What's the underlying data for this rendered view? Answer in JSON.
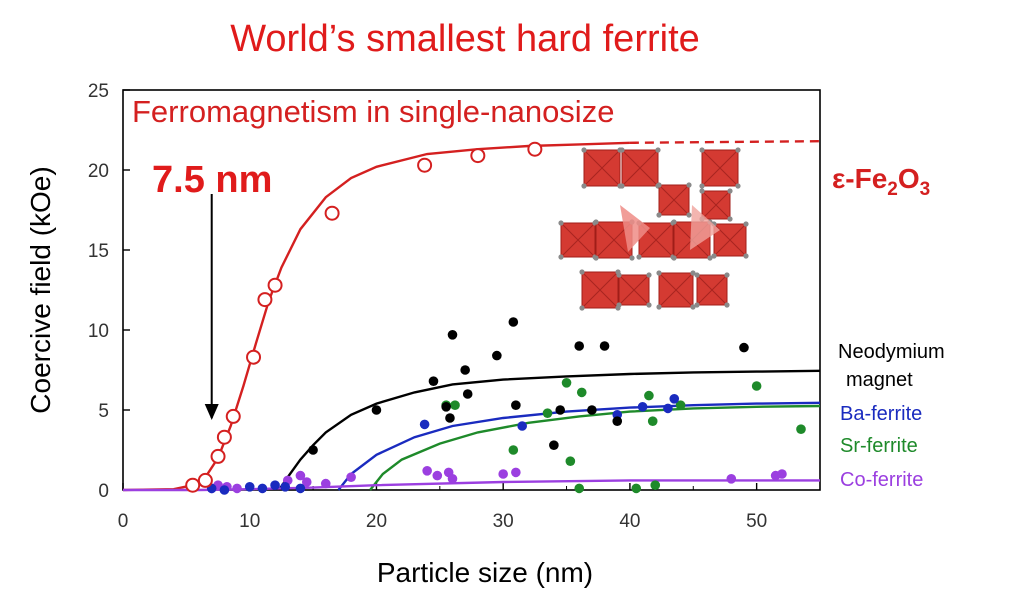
{
  "title": "World’s smallest hard ferrite",
  "chart_data": {
    "type": "scatter",
    "title": "World’s smallest hard ferrite",
    "subtitle": "Ferromagnetism in single-nanosize",
    "xlabel": "Particle size (nm)",
    "ylabel": "Coercive field (kOe)",
    "xlim": [
      0,
      55
    ],
    "ylim": [
      0,
      25
    ],
    "x_ticks": [
      0,
      10,
      20,
      30,
      40,
      50
    ],
    "y_ticks": [
      0,
      5,
      10,
      15,
      20,
      25
    ],
    "grid": false,
    "annotations": {
      "arrow_label": "7.5 nm",
      "arrow_x": 7,
      "arrow_from_y": 18.5,
      "arrow_to_y": 4.5
    },
    "legend_placement": "right, outside plot, next to curve ends",
    "series": [
      {
        "name": "ε-Fe2O3",
        "label_main": "ε-Fe",
        "label_sub1": "2",
        "label_mid": "O",
        "label_sub2": "3",
        "color": "#d42020",
        "marker": "open-circle",
        "points": [
          [
            5.5,
            0.3
          ],
          [
            6.5,
            0.6
          ],
          [
            7.5,
            2.1
          ],
          [
            8,
            3.3
          ],
          [
            8.7,
            4.6
          ],
          [
            10.3,
            8.3
          ],
          [
            11.2,
            11.9
          ],
          [
            12,
            12.8
          ],
          [
            16.5,
            17.3
          ],
          [
            23.8,
            20.3
          ],
          [
            28,
            20.9
          ],
          [
            32.5,
            21.3
          ]
        ],
        "curve": [
          [
            0,
            0
          ],
          [
            4,
            0.05
          ],
          [
            5.5,
            0.3
          ],
          [
            6.5,
            0.8
          ],
          [
            7.5,
            2
          ],
          [
            8.5,
            4
          ],
          [
            9.5,
            6.5
          ],
          [
            10.5,
            9.2
          ],
          [
            11.5,
            11.8
          ],
          [
            12.5,
            13.9
          ],
          [
            14,
            16.3
          ],
          [
            16,
            18.3
          ],
          [
            18,
            19.5
          ],
          [
            20,
            20.2
          ],
          [
            24,
            21
          ],
          [
            28,
            21.3
          ],
          [
            32,
            21.5
          ],
          [
            36,
            21.6
          ],
          [
            40,
            21.7
          ]
        ],
        "curve_dashed": [
          [
            40,
            21.7
          ],
          [
            55,
            21.8
          ]
        ]
      },
      {
        "name": "Neodymium magnet",
        "label_line1": "Neodymium",
        "label_line2": "magnet",
        "color": "#000000",
        "marker": "filled-circle",
        "points": [
          [
            15,
            2.5
          ],
          [
            20,
            5
          ],
          [
            24.5,
            6.8
          ],
          [
            25.5,
            5.2
          ],
          [
            25.8,
            4.5
          ],
          [
            26,
            9.7
          ],
          [
            27,
            7.5
          ],
          [
            27.2,
            6
          ],
          [
            29.5,
            8.4
          ],
          [
            30.8,
            10.5
          ],
          [
            31,
            5.3
          ],
          [
            34,
            2.8
          ],
          [
            34.5,
            5
          ],
          [
            36,
            9
          ],
          [
            37,
            5
          ],
          [
            38,
            9
          ],
          [
            39,
            4.3
          ],
          [
            49,
            8.9
          ]
        ],
        "curve": [
          [
            12.3,
            0
          ],
          [
            13,
            0.8
          ],
          [
            14,
            1.9
          ],
          [
            15,
            2.8
          ],
          [
            16,
            3.6
          ],
          [
            18,
            4.7
          ],
          [
            20,
            5.4
          ],
          [
            23,
            6.1
          ],
          [
            26,
            6.6
          ],
          [
            30,
            6.9
          ],
          [
            35,
            7.1
          ],
          [
            40,
            7.25
          ],
          [
            45,
            7.35
          ],
          [
            50,
            7.4
          ],
          [
            55,
            7.45
          ]
        ]
      },
      {
        "name": "Ba-ferrite",
        "color": "#1a2bbf",
        "marker": "filled-circle",
        "points": [
          [
            7,
            0.1
          ],
          [
            8,
            0
          ],
          [
            10,
            0.2
          ],
          [
            11,
            0.1
          ],
          [
            12,
            0.3
          ],
          [
            12.8,
            0.2
          ],
          [
            14,
            0.1
          ],
          [
            23.8,
            4.1
          ],
          [
            31.5,
            4
          ],
          [
            39,
            4.7
          ],
          [
            41,
            5.2
          ],
          [
            43,
            5.1
          ],
          [
            43.5,
            5.7
          ]
        ],
        "curve": [
          [
            17,
            0
          ],
          [
            18,
            1
          ],
          [
            20,
            2.2
          ],
          [
            23,
            3.3
          ],
          [
            26,
            4
          ],
          [
            30,
            4.5
          ],
          [
            35,
            4.9
          ],
          [
            40,
            5.15
          ],
          [
            45,
            5.3
          ],
          [
            50,
            5.4
          ],
          [
            55,
            5.45
          ]
        ]
      },
      {
        "name": "Sr-ferrite",
        "color": "#1e8a2a",
        "marker": "filled-circle",
        "points": [
          [
            25.5,
            5.3
          ],
          [
            26.2,
            5.3
          ],
          [
            30.8,
            2.5
          ],
          [
            33.5,
            4.8
          ],
          [
            35,
            6.7
          ],
          [
            35.3,
            1.8
          ],
          [
            36.2,
            6.1
          ],
          [
            41.5,
            5.9
          ],
          [
            41.8,
            4.3
          ],
          [
            44,
            5.3
          ],
          [
            50,
            6.5
          ],
          [
            53.5,
            3.8
          ],
          [
            36,
            0.1
          ],
          [
            40.5,
            0.1
          ],
          [
            42,
            0.3
          ]
        ],
        "curve": [
          [
            19.5,
            0
          ],
          [
            20.5,
            1
          ],
          [
            22,
            1.9
          ],
          [
            25,
            2.9
          ],
          [
            28,
            3.6
          ],
          [
            32,
            4.2
          ],
          [
            36,
            4.6
          ],
          [
            40,
            4.9
          ],
          [
            45,
            5.1
          ],
          [
            50,
            5.2
          ],
          [
            55,
            5.25
          ]
        ]
      },
      {
        "name": "Co-ferrite",
        "color": "#9b3fe0",
        "marker": "filled-circle",
        "points": [
          [
            7,
            0.1
          ],
          [
            7.5,
            0.3
          ],
          [
            8.2,
            0.2
          ],
          [
            9,
            0.1
          ],
          [
            13,
            0.6
          ],
          [
            14,
            0.9
          ],
          [
            14.5,
            0.5
          ],
          [
            16,
            0.4
          ],
          [
            18,
            0.8
          ],
          [
            24,
            1.2
          ],
          [
            24.8,
            0.9
          ],
          [
            25.7,
            1.1
          ],
          [
            26,
            0.7
          ],
          [
            30,
            1
          ],
          [
            31,
            1.1
          ],
          [
            48,
            0.7
          ],
          [
            51.5,
            0.9
          ],
          [
            52,
            1
          ]
        ],
        "curve": [
          [
            0,
            0
          ],
          [
            6,
            0
          ],
          [
            10,
            0.05
          ],
          [
            15,
            0.15
          ],
          [
            20,
            0.3
          ],
          [
            30,
            0.5
          ],
          [
            40,
            0.6
          ],
          [
            55,
            0.6
          ]
        ]
      }
    ]
  }
}
